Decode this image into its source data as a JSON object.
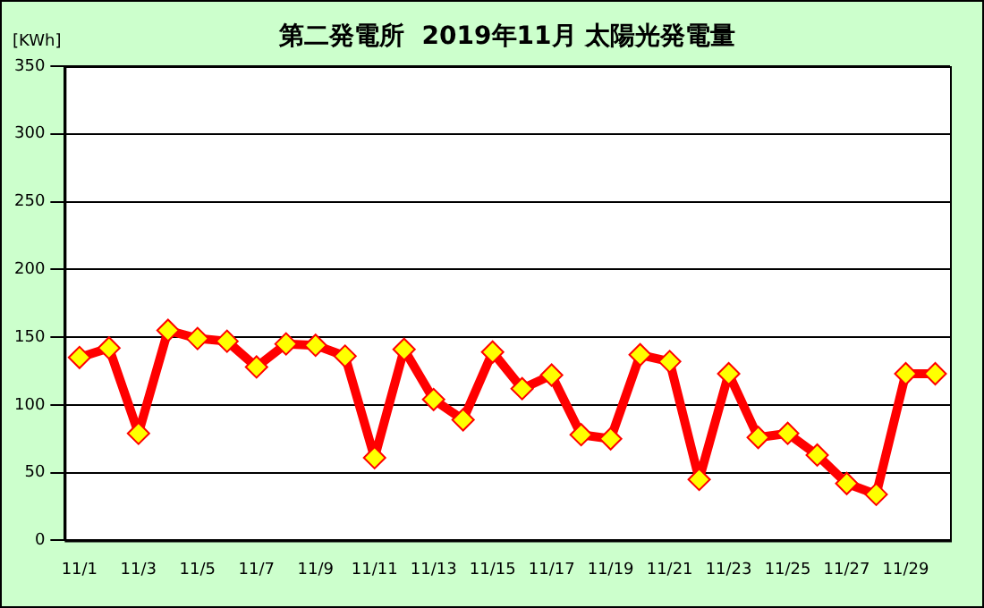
{
  "chart_data": {
    "type": "line",
    "title": "第二発電所  2019年11月 太陽光発電量",
    "ylabel": "[KWh]",
    "categories": [
      "11/1",
      null,
      "11/3",
      null,
      "11/5",
      null,
      "11/7",
      null,
      "11/9",
      null,
      "11/11",
      null,
      "11/13",
      null,
      "11/15",
      null,
      "11/17",
      null,
      "11/19",
      null,
      "11/21",
      null,
      "11/23",
      null,
      "11/25",
      null,
      "11/27",
      null,
      "11/29",
      null
    ],
    "series": [
      {
        "color": "#ff0000",
        "values": [
          135,
          142,
          79,
          155,
          149,
          147,
          128,
          145,
          144,
          136,
          61,
          141,
          104,
          89,
          139,
          112,
          122,
          78,
          75,
          137,
          132,
          45,
          123,
          76,
          79,
          63,
          42,
          34,
          123,
          123
        ]
      }
    ],
    "ylim": [
      0,
      350
    ],
    "yticks": [
      0,
      50,
      100,
      150,
      200,
      250,
      300,
      350
    ],
    "grid": "y",
    "legend": false,
    "marker": "diamond",
    "line_style": "solid"
  }
}
